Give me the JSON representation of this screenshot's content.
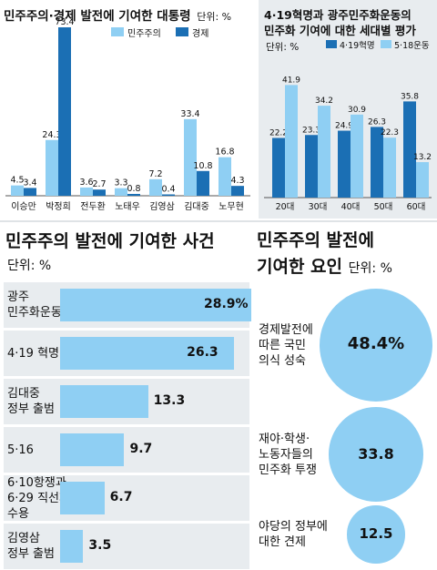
{
  "chart_data": [
    {
      "type": "bar",
      "title": "민주주의·경제 발전에 기여한 대통령",
      "unit": "단위: %",
      "categories": [
        "이승만",
        "박정희",
        "전두환",
        "노태우",
        "김영삼",
        "김대중",
        "노무현"
      ],
      "series": [
        {
          "name": "민주주의",
          "color": "#8fcff3",
          "values": [
            4.5,
            24.3,
            3.6,
            3.3,
            7.2,
            33.4,
            16.8
          ]
        },
        {
          "name": "경제",
          "color": "#1b6fb4",
          "values": [
            3.4,
            73.4,
            2.7,
            0.8,
            0.4,
            10.8,
            4.3
          ]
        }
      ]
    },
    {
      "type": "bar",
      "title_lines": [
        "4·19혁명과 광주민주화운동의",
        "민주화 기여에 대한 세대별 평가"
      ],
      "unit": "단위: %",
      "categories": [
        "20대",
        "30대",
        "40대",
        "50대",
        "60대"
      ],
      "series": [
        {
          "name": "4·19혁명",
          "color": "#1b6fb4",
          "values": [
            22.2,
            23.3,
            24.9,
            26.3,
            35.8
          ]
        },
        {
          "name": "5·18운동",
          "color": "#8fcff3",
          "values": [
            41.9,
            34.2,
            30.9,
            22.3,
            13.2
          ]
        }
      ]
    },
    {
      "type": "bar",
      "orientation": "horizontal",
      "title": "민주주의 발전에 기여한 사건",
      "unit": "단위: %",
      "items": [
        {
          "label_lines": [
            "광주",
            "민주화운동"
          ],
          "value": 28.9,
          "value_text": "28.9%"
        },
        {
          "label_lines": [
            "4·19 혁명"
          ],
          "value": 26.3,
          "value_text": "26.3"
        },
        {
          "label_lines": [
            "김대중",
            "정부 출범"
          ],
          "value": 13.3,
          "value_text": "13.3"
        },
        {
          "label_lines": [
            "5·16"
          ],
          "value": 9.7,
          "value_text": "9.7"
        },
        {
          "label_lines": [
            "6·10항쟁과",
            "6·29 직선제",
            "수용"
          ],
          "value": 6.7,
          "value_text": "6.7"
        },
        {
          "label_lines": [
            "김영삼",
            "정부 출범"
          ],
          "value": 3.5,
          "value_text": "3.5"
        }
      ]
    },
    {
      "type": "bubble",
      "title_lines": [
        "민주주의 발전에",
        "기여한 요인"
      ],
      "unit": "단위: %",
      "items": [
        {
          "label_lines": [
            "경제발전에",
            "따른 국민",
            "의식 성숙"
          ],
          "value": 48.4,
          "value_text": "48.4%"
        },
        {
          "label_lines": [
            "재야·학생·",
            "노동자들의",
            "민주화 투쟁"
          ],
          "value": 33.8,
          "value_text": "33.8"
        },
        {
          "label_lines": [
            "야당의 정부에",
            "대한 견제"
          ],
          "value": 12.5,
          "value_text": "12.5"
        }
      ]
    }
  ]
}
